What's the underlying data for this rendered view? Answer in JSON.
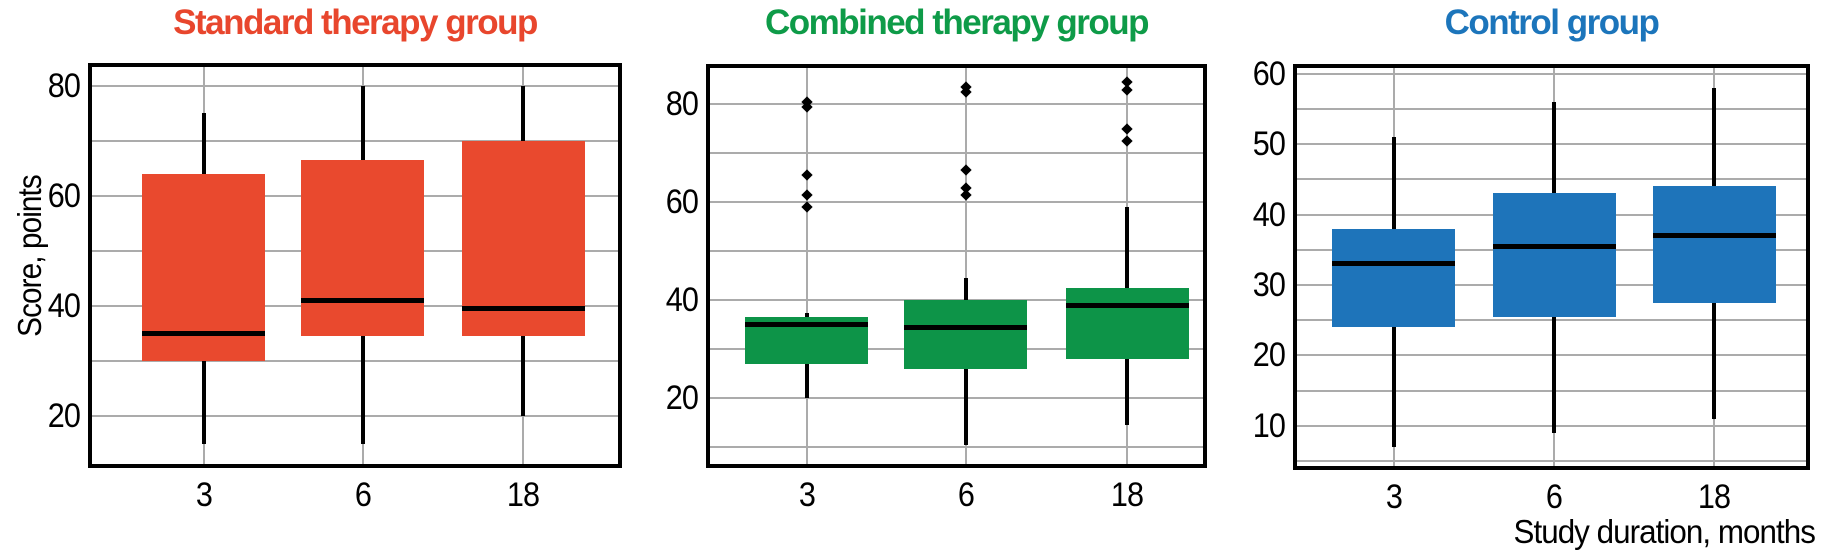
{
  "figure": {
    "ylabel": "Score, points",
    "xlabel": "Study duration, months"
  },
  "chart_data": [
    {
      "type": "boxplot",
      "title": "Standard therapy group",
      "title_color": "#E8462D",
      "box_color": "#E9492E",
      "median_color": "#000000",
      "categories": [
        "3",
        "6",
        "18"
      ],
      "xlabel": "",
      "ylabel": "Score, points",
      "ylim": [
        11.3,
        83.4
      ],
      "yticks": [
        20,
        40,
        60,
        80
      ],
      "gridlines_y": [
        20,
        30,
        40,
        50,
        60,
        70,
        80
      ],
      "grid": true,
      "boxes": [
        {
          "category": "3",
          "whisker_low": 15,
          "q1": 30,
          "median": 35,
          "q3": 64,
          "whisker_high": 75,
          "outliers": []
        },
        {
          "category": "6",
          "whisker_low": 15,
          "q1": 34.5,
          "median": 41,
          "q3": 66.5,
          "whisker_high": 80,
          "outliers": []
        },
        {
          "category": "18",
          "whisker_low": 20,
          "q1": 34.5,
          "median": 39.5,
          "q3": 70,
          "whisker_high": 80,
          "outliers": []
        }
      ]
    },
    {
      "type": "boxplot",
      "title": "Combined therapy group",
      "title_color": "#0E9B48",
      "box_color": "#0D9448",
      "median_color": "#000000",
      "categories": [
        "3",
        "6",
        "18"
      ],
      "xlabel": "",
      "ylabel": "Score, points",
      "ylim": [
        6.6,
        87.4
      ],
      "yticks": [
        20,
        40,
        60,
        80
      ],
      "gridlines_y": [
        10,
        20,
        30,
        40,
        50,
        60,
        70,
        80
      ],
      "grid": true,
      "boxes": [
        {
          "category": "3",
          "whisker_low": 20,
          "q1": 27,
          "median": 35,
          "q3": 36.5,
          "whisker_high": 37.5,
          "outliers": [
            59,
            61.5,
            65.5,
            79.5,
            80.5
          ]
        },
        {
          "category": "6",
          "whisker_low": 10.5,
          "q1": 26,
          "median": 34.5,
          "q3": 40,
          "whisker_high": 44.5,
          "outliers": [
            61.5,
            63,
            66.5,
            82.5,
            83.5
          ]
        },
        {
          "category": "18",
          "whisker_low": 14.5,
          "q1": 28,
          "median": 39,
          "q3": 42.5,
          "whisker_high": 59,
          "outliers": [
            72.5,
            75,
            83,
            84.5
          ]
        }
      ]
    },
    {
      "type": "boxplot",
      "title": "Control group",
      "title_color": "#1C75BB",
      "box_color": "#1E74BA",
      "median_color": "#000000",
      "categories": [
        "3",
        "6",
        "18"
      ],
      "xlabel": "Study duration, months",
      "ylabel": "Score, points",
      "ylim": [
        4.3,
        60.8
      ],
      "yticks": [
        10,
        20,
        30,
        40,
        50,
        60
      ],
      "gridlines_y": [
        5,
        10,
        15,
        20,
        25,
        30,
        35,
        40,
        45,
        50,
        55,
        60
      ],
      "grid": true,
      "boxes": [
        {
          "category": "3",
          "whisker_low": 7,
          "q1": 24,
          "median": 33,
          "q3": 38,
          "whisker_high": 51,
          "outliers": []
        },
        {
          "category": "6",
          "whisker_low": 9,
          "q1": 25.5,
          "median": 35.5,
          "q3": 43,
          "whisker_high": 56,
          "outliers": []
        },
        {
          "category": "18",
          "whisker_low": 11,
          "q1": 27.5,
          "median": 37,
          "q3": 44,
          "whisker_high": 58,
          "outliers": []
        }
      ]
    }
  ]
}
